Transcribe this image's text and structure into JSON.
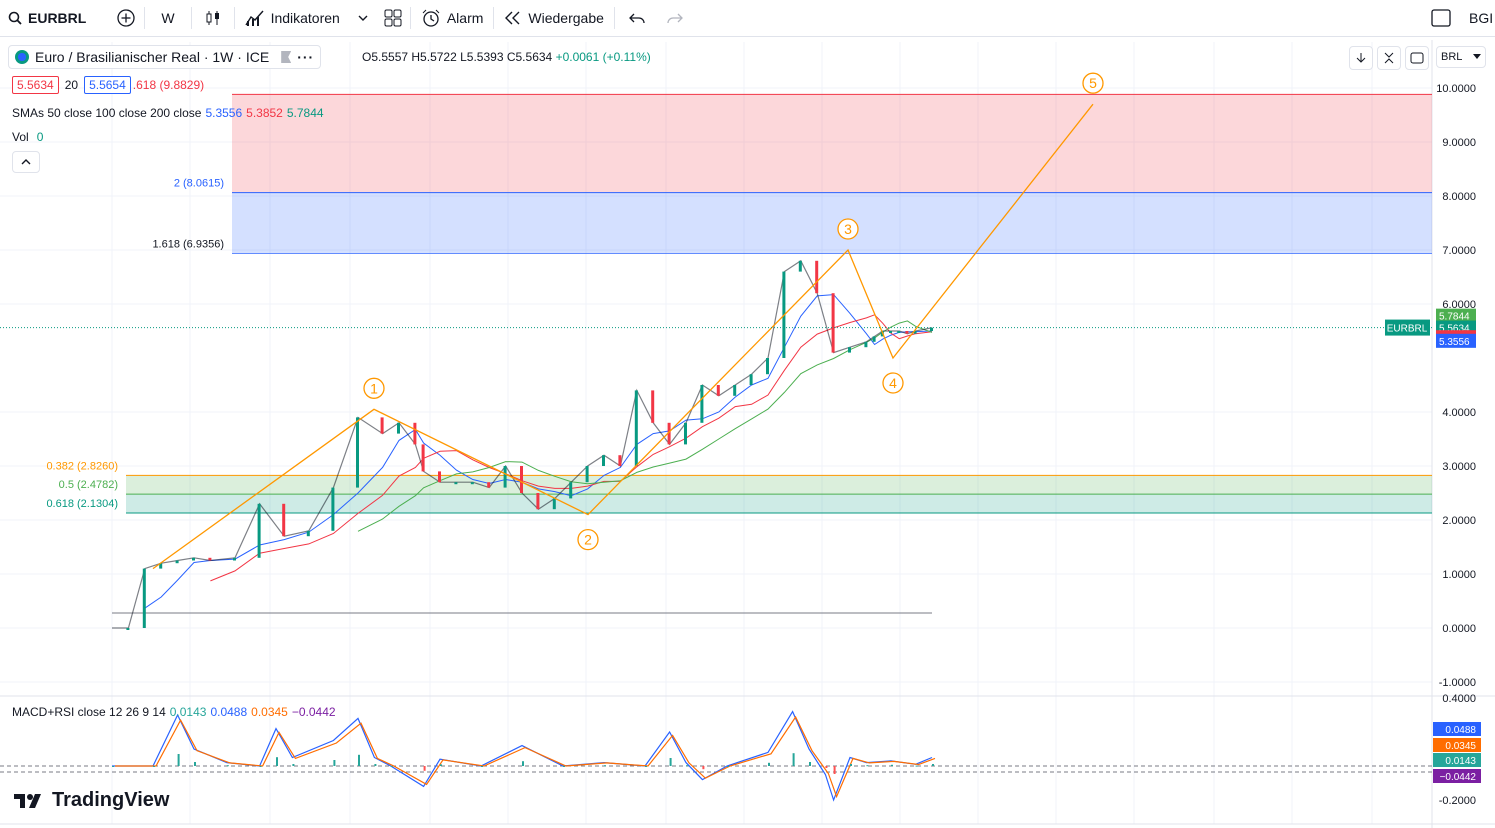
{
  "toolbar": {
    "symbol": "EURBRL",
    "interval": "W",
    "indicators_label": "Indikatoren",
    "alert_label": "Alarm",
    "replay_label": "Wiedergabe",
    "right_label": "BGI"
  },
  "legend": {
    "title": "Euro / Brasilianischer Real · 1W · ICE",
    "ohlc": {
      "o": "O5.5557",
      "h": "H5.5722",
      "l": "L5.5393",
      "c": "C5.5634",
      "chg": "+0.0061 (+0.11%)"
    },
    "sell_price": "5.5634",
    "spread": "20",
    "buy_price": "5.5654",
    "fib_cut": ".618 (9.8829)",
    "sma_label": "SMAs 50 close 100 close 200 close",
    "sma_values": [
      "5.3556",
      "5.3852",
      "5.7844"
    ],
    "vol_label": "Vol",
    "vol_value": "0",
    "macd_label": "MACD+RSI close 12 26 9 14",
    "macd_values": [
      "0.0143",
      "0.0488",
      "0.0345",
      "−0.0442"
    ]
  },
  "currency": "BRL",
  "brand": "TradingView",
  "colors": {
    "up": "#089981",
    "down": "#f23645",
    "sma50": "#2962ff",
    "sma100": "#f23645",
    "sma200": "#4caf50",
    "wave": "#ff9800"
  },
  "chart_data": [
    {
      "type": "line",
      "title": "EURBRL",
      "y_ticks": [
        "10.0000",
        "9.0000",
        "8.0000",
        "7.0000",
        "6.0000",
        "4.0000",
        "3.0000",
        "2.0000",
        "1.0000",
        "0.0000",
        "-1.0000"
      ],
      "ylim": [
        -1.0,
        10.0
      ],
      "price_series": {
        "name": "EURBRL",
        "x": [
          0,
          2,
          4,
          6,
          8,
          10,
          12,
          15,
          18,
          21,
          24,
          27,
          30,
          33,
          35,
          37,
          38,
          40,
          42,
          44,
          46,
          48,
          50,
          52,
          54,
          56,
          58,
          60,
          62,
          64,
          66,
          68,
          70,
          72,
          74,
          76,
          78,
          80,
          82,
          84,
          86,
          88,
          90,
          92,
          93,
          94,
          95,
          96,
          97,
          98,
          100
        ],
        "y": [
          0,
          0,
          1.1,
          1.2,
          1.25,
          1.3,
          1.25,
          1.3,
          2.3,
          1.7,
          1.8,
          2.6,
          3.9,
          3.6,
          3.8,
          3.4,
          2.9,
          2.7,
          2.7,
          2.7,
          2.6,
          3.0,
          2.5,
          2.2,
          2.4,
          2.7,
          3.0,
          3.2,
          3.0,
          4.4,
          3.8,
          3.4,
          3.8,
          4.5,
          4.3,
          4.5,
          4.7,
          5.0,
          6.6,
          6.8,
          6.2,
          5.1,
          5.2,
          5.3,
          5.4,
          5.5,
          5.5,
          5.5,
          5.45,
          5.5,
          5.56
        ]
      },
      "sma_series": [
        {
          "name": "SMA 50",
          "last": 5.3556
        },
        {
          "name": "SMA 100",
          "last": 5.3852
        },
        {
          "name": "SMA 200",
          "last": 5.7844
        }
      ],
      "fib_levels": [
        {
          "label": "1.618 (9.8829)",
          "value": 9.8829
        },
        {
          "label": "2 (8.0615)",
          "value": 8.0615
        },
        {
          "label": "1.618 (6.9356)",
          "value": 6.9356
        },
        {
          "label": "0.382 (2.8260)",
          "value": 2.826
        },
        {
          "label": "0.5 (2.4782)",
          "value": 2.4782
        },
        {
          "label": "0.618 (2.1304)",
          "value": 2.1304
        }
      ],
      "elliott_waves": [
        {
          "label": "1",
          "value": 4.05
        },
        {
          "label": "2",
          "value": 2.1
        },
        {
          "label": "3",
          "value": 7.0
        },
        {
          "label": "4",
          "value": 5.0
        },
        {
          "label": "5",
          "value": 9.7
        }
      ],
      "price_labels": [
        {
          "text": "5.7844",
          "color": "#4caf50"
        },
        {
          "text": "5.5634",
          "color": "#089981"
        },
        {
          "text": "3d 13h",
          "color": "#089981"
        },
        {
          "text": "5.3852",
          "color": "#f23645"
        },
        {
          "text": "5.3556",
          "color": "#2962ff"
        }
      ],
      "symbol_tag": "EURBRL"
    },
    {
      "type": "line",
      "title": "MACD+RSI",
      "y_ticks": [
        "0.4000",
        "-0.2000"
      ],
      "series": [
        {
          "name": "MACD",
          "x": [
            0,
            5,
            8,
            10,
            14,
            18,
            20,
            22,
            27,
            30,
            32,
            34,
            38,
            40,
            45,
            50,
            55,
            60,
            65,
            68,
            70,
            72,
            75,
            80,
            83,
            85,
            87,
            88,
            90,
            92,
            95,
            98,
            100
          ],
          "y": [
            0,
            0,
            0.3,
            0.1,
            0.02,
            0.0,
            0.22,
            0.05,
            0.15,
            0.28,
            0.05,
            0.0,
            -0.12,
            0.04,
            0.0,
            0.12,
            0.0,
            0.02,
            0.0,
            0.2,
            0.02,
            -0.08,
            0.0,
            0.08,
            0.32,
            0.1,
            -0.05,
            -0.2,
            0.05,
            0.02,
            0.03,
            0.01,
            0.05
          ]
        }
      ],
      "labels": [
        {
          "text": "0.0488",
          "color": "#2962ff"
        },
        {
          "text": "0.0345",
          "color": "#ff6d00"
        },
        {
          "text": "0.0143",
          "color": "#26a69a"
        },
        {
          "text": "−0.0442",
          "color": "#7b1fa2"
        }
      ]
    }
  ]
}
